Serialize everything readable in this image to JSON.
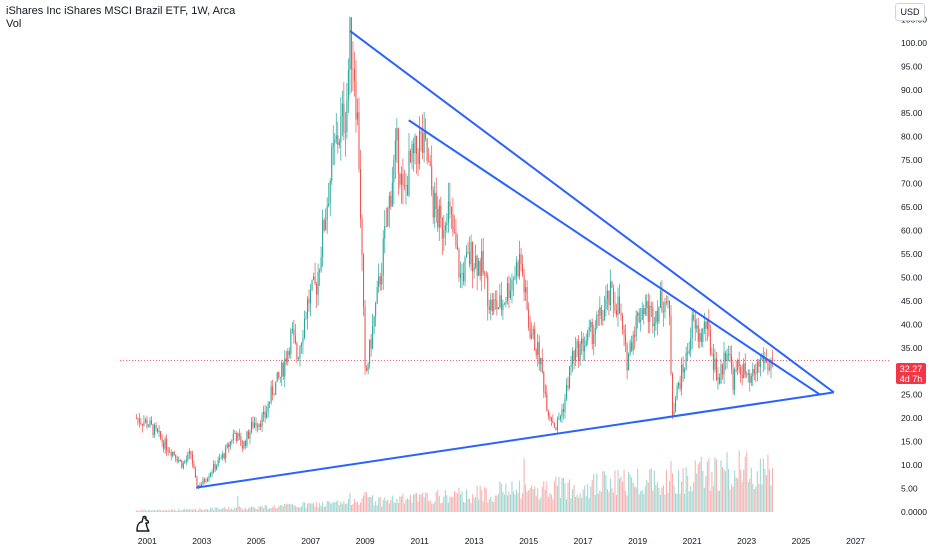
{
  "legend": {
    "title": "iShares Inc iShares MSCI Brazil ETF, 1W, Arca",
    "volume_label": "Vol"
  },
  "currency_button": "USD",
  "price_tag": {
    "price": "32.27",
    "countdown": "4d 7h"
  },
  "icons": {
    "logo": "tradingview-dino-icon"
  },
  "colors": {
    "up": "#26a69a",
    "down": "#ef5350",
    "trendline": "#2962ff",
    "price_line": "#f23645",
    "axis_text": "#131722"
  },
  "chart_data": {
    "type": "candlestick",
    "symbol": "iShares MSCI Brazil ETF",
    "interval": "1W",
    "exchange": "Arca",
    "last_price": 32.27,
    "y_axis": {
      "ticks": [
        0,
        5,
        10,
        15,
        20,
        25,
        30,
        35,
        40,
        45,
        50,
        55,
        60,
        65,
        70,
        75,
        80,
        85,
        90,
        95,
        100,
        105
      ],
      "tick_labels": [
        "0.0000",
        "5.00",
        "10.00",
        "15.00",
        "20.00",
        "25.00",
        "30.00",
        "35.00",
        "40.00",
        "45.00",
        "50.00",
        "55.00",
        "60.00",
        "65.00",
        "70.00",
        "75.00",
        "80.00",
        "85.00",
        "90.00",
        "95.00",
        "100.00",
        "105.00"
      ],
      "range": [
        0,
        107
      ]
    },
    "x_axis": {
      "ticks": [
        2001,
        2003,
        2005,
        2007,
        2009,
        2011,
        2013,
        2015,
        2017,
        2019,
        2021,
        2023,
        2025,
        2027
      ],
      "tick_labels": [
        "2001",
        "2003",
        "2005",
        "2007",
        "2009",
        "2011",
        "2013",
        "2015",
        "2017",
        "2019",
        "2021",
        "2023",
        "2025",
        "2027"
      ],
      "range": [
        2000.0,
        2028.3
      ]
    },
    "price_path": [
      [
        2000.6,
        20
      ],
      [
        2001.0,
        19
      ],
      [
        2001.3,
        17
      ],
      [
        2001.7,
        14
      ],
      [
        2002.0,
        12.5
      ],
      [
        2002.3,
        10
      ],
      [
        2002.6,
        12.5
      ],
      [
        2002.8,
        5.5
      ],
      [
        2003.0,
        6
      ],
      [
        2003.3,
        8.5
      ],
      [
        2003.6,
        10.5
      ],
      [
        2003.9,
        13
      ],
      [
        2004.2,
        17
      ],
      [
        2004.5,
        14
      ],
      [
        2004.9,
        19
      ],
      [
        2005.3,
        20
      ],
      [
        2005.6,
        26
      ],
      [
        2005.9,
        29
      ],
      [
        2006.3,
        38
      ],
      [
        2006.5,
        33
      ],
      [
        2006.9,
        45
      ],
      [
        2007.2,
        48
      ],
      [
        2007.5,
        62
      ],
      [
        2007.8,
        75
      ],
      [
        2008.0,
        80
      ],
      [
        2008.3,
        86
      ],
      [
        2008.45,
        101
      ],
      [
        2008.6,
        95
      ],
      [
        2008.75,
        80
      ],
      [
        2008.9,
        50
      ],
      [
        2009.0,
        28
      ],
      [
        2009.2,
        36
      ],
      [
        2009.5,
        48
      ],
      [
        2009.8,
        62
      ],
      [
        2010.0,
        72
      ],
      [
        2010.2,
        78
      ],
      [
        2010.4,
        66
      ],
      [
        2010.6,
        73
      ],
      [
        2010.8,
        75
      ],
      [
        2011.0,
        79
      ],
      [
        2011.25,
        76
      ],
      [
        2011.5,
        66
      ],
      [
        2011.8,
        60
      ],
      [
        2012.0,
        66
      ],
      [
        2012.2,
        60
      ],
      [
        2012.5,
        50
      ],
      [
        2012.9,
        55
      ],
      [
        2013.3,
        52
      ],
      [
        2013.6,
        44
      ],
      [
        2014.0,
        44
      ],
      [
        2014.4,
        50
      ],
      [
        2014.7,
        54
      ],
      [
        2015.0,
        40
      ],
      [
        2015.4,
        33
      ],
      [
        2015.7,
        22
      ],
      [
        2016.0,
        18
      ],
      [
        2016.3,
        23
      ],
      [
        2016.6,
        33
      ],
      [
        2016.9,
        35
      ],
      [
        2017.3,
        38
      ],
      [
        2017.7,
        42
      ],
      [
        2018.0,
        46
      ],
      [
        2018.3,
        44
      ],
      [
        2018.6,
        32
      ],
      [
        2018.9,
        40
      ],
      [
        2019.2,
        44
      ],
      [
        2019.5,
        42
      ],
      [
        2019.8,
        44
      ],
      [
        2020.0,
        46
      ],
      [
        2020.2,
        40
      ],
      [
        2020.25,
        21
      ],
      [
        2020.5,
        27
      ],
      [
        2020.8,
        33
      ],
      [
        2021.0,
        40
      ],
      [
        2021.3,
        37
      ],
      [
        2021.5,
        40
      ],
      [
        2021.8,
        32
      ],
      [
        2022.0,
        28
      ],
      [
        2022.3,
        36
      ],
      [
        2022.5,
        28
      ],
      [
        2022.7,
        31
      ],
      [
        2022.9,
        30
      ],
      [
        2023.1,
        27
      ],
      [
        2023.4,
        31
      ],
      [
        2023.6,
        33
      ],
      [
        2023.8,
        31
      ],
      [
        2023.95,
        32.27
      ]
    ],
    "volume_scale_max": 12,
    "trendlines": [
      {
        "name": "upper-outer",
        "from": [
          2008.45,
          102.5
        ],
        "to": [
          2026.2,
          25.5
        ]
      },
      {
        "name": "upper-inner",
        "from": [
          2010.6,
          83.5
        ],
        "to": [
          2025.7,
          25.0
        ]
      },
      {
        "name": "lower",
        "from": [
          2002.8,
          5.2
        ],
        "to": [
          2026.2,
          25.5
        ]
      }
    ],
    "last_price_line": 32.27
  }
}
